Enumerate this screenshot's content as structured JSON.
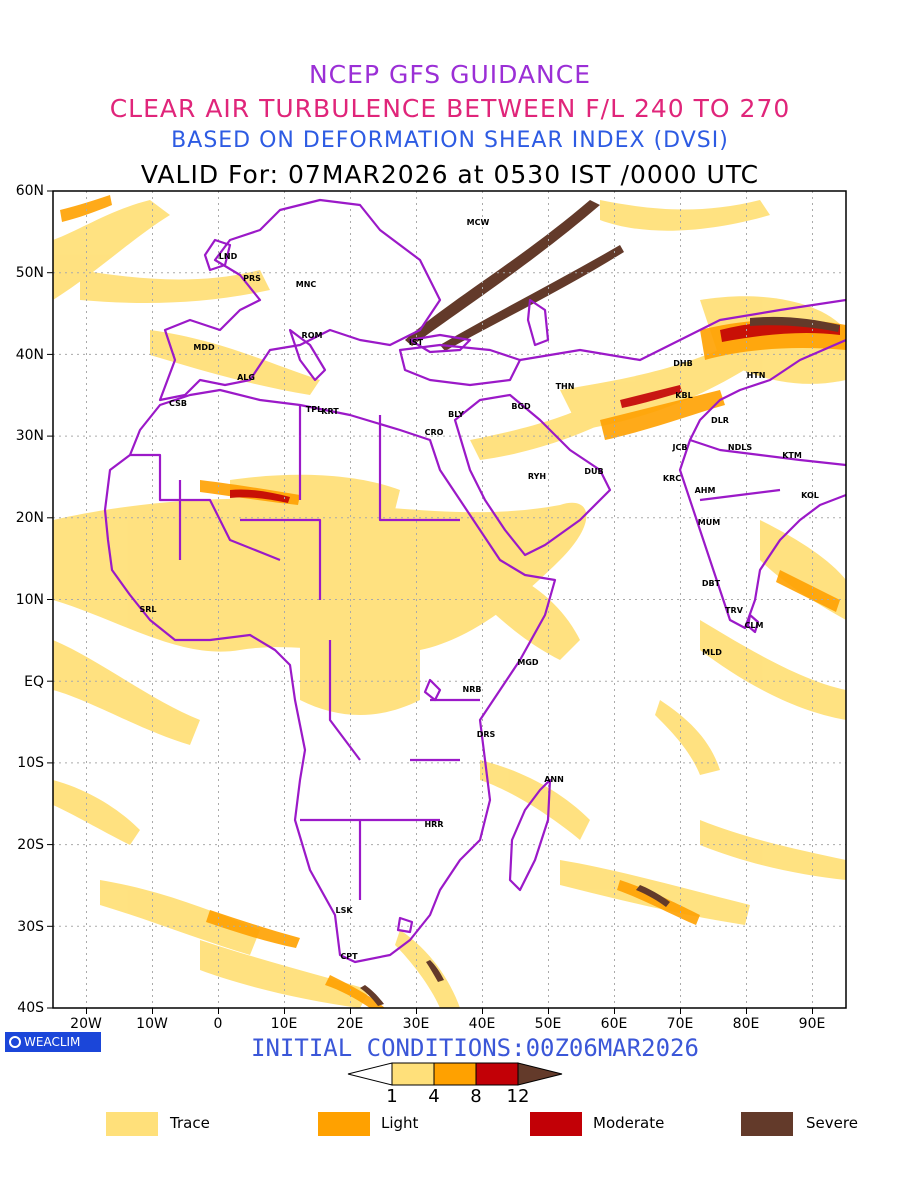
{
  "header": {
    "line1": "NCEP GFS GUIDANCE",
    "line2": "CLEAR AIR TURBULENCE BETWEEN F/L 240 TO 270",
    "line3": "BASED ON DEFORMATION SHEAR INDEX (DVSI)",
    "line4": "VALID For: 07MAR2026 at 0530 IST /0000 UTC"
  },
  "map": {
    "lat_labels": [
      "60N",
      "50N",
      "40N",
      "30N",
      "20N",
      "10N",
      "EQ",
      "10S",
      "20S",
      "30S",
      "40S"
    ],
    "lon_labels": [
      "20W",
      "10W",
      "0",
      "10E",
      "20E",
      "30E",
      "40E",
      "50E",
      "60E",
      "70E",
      "80E",
      "90E"
    ],
    "stations": [
      "MCW",
      "LND",
      "PRS",
      "MNC",
      "ROM",
      "MDD",
      "IST",
      "ALG",
      "CSB",
      "TPL",
      "KRT",
      "CRO",
      "BLY",
      "BGD",
      "THN",
      "DHB",
      "HTN",
      "KBL",
      "DLR",
      "JCB",
      "NDLS",
      "KTM",
      "RYH",
      "DUB",
      "KRC",
      "AHM",
      "KOL",
      "MUM",
      "SRL",
      "MGD",
      "NRB",
      "DRS",
      "DBT",
      "TRV",
      "CLM",
      "MLD",
      "ANN",
      "HRR",
      "LSK",
      "CPT"
    ],
    "colors": {
      "border": "#9b19c8",
      "trace": "#ffe07a",
      "light": "#ffa100",
      "moderate": "#c20006",
      "severe": "#633a2a",
      "grid": "#aaaaaa"
    }
  },
  "footer": {
    "logo_text": "WEACLIM",
    "initial_conditions": "INITIAL CONDITIONS:00Z06MAR2026"
  },
  "colorbar": {
    "labels": [
      "1",
      "4",
      "8",
      "12"
    ]
  },
  "legend": {
    "items": [
      {
        "label": "Trace",
        "color": "#ffe07a"
      },
      {
        "label": "Light",
        "color": "#ffa100"
      },
      {
        "label": "Moderate",
        "color": "#c20006"
      },
      {
        "label": "Severe",
        "color": "#633a2a"
      }
    ]
  }
}
